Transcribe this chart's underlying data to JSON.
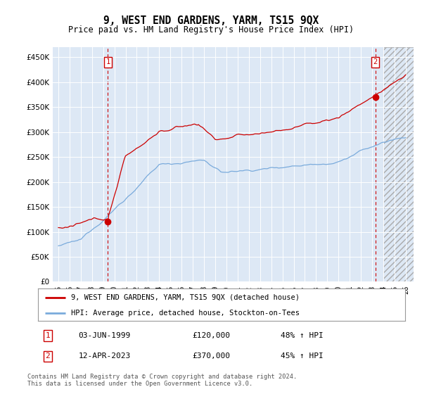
{
  "title": "9, WEST END GARDENS, YARM, TS15 9QX",
  "subtitle": "Price paid vs. HM Land Registry's House Price Index (HPI)",
  "ylim": [
    0,
    470000
  ],
  "yticks": [
    0,
    50000,
    100000,
    150000,
    200000,
    250000,
    300000,
    350000,
    400000,
    450000
  ],
  "xtick_years": [
    1995,
    1996,
    1997,
    1998,
    1999,
    2000,
    2001,
    2002,
    2003,
    2004,
    2005,
    2006,
    2007,
    2008,
    2009,
    2010,
    2011,
    2012,
    2013,
    2014,
    2015,
    2016,
    2017,
    2018,
    2019,
    2020,
    2021,
    2022,
    2023,
    2024,
    2025,
    2026
  ],
  "hpi_color": "#7aabdc",
  "price_color": "#cc0000",
  "bg_color": "#dde8f5",
  "hatch_region_start": 2024.0,
  "legend_label_red": "9, WEST END GARDENS, YARM, TS15 9QX (detached house)",
  "legend_label_blue": "HPI: Average price, detached house, Stockton-on-Tees",
  "annotation1_date": "03-JUN-1999",
  "annotation1_price": "£120,000",
  "annotation1_hpi": "48% ↑ HPI",
  "annotation1_year": 1999.42,
  "annotation1_value": 120000,
  "annotation2_date": "12-APR-2023",
  "annotation2_price": "£370,000",
  "annotation2_hpi": "45% ↑ HPI",
  "annotation2_year": 2023.28,
  "annotation2_value": 370000,
  "footer": "Contains HM Land Registry data © Crown copyright and database right 2024.\nThis data is licensed under the Open Government Licence v3.0."
}
